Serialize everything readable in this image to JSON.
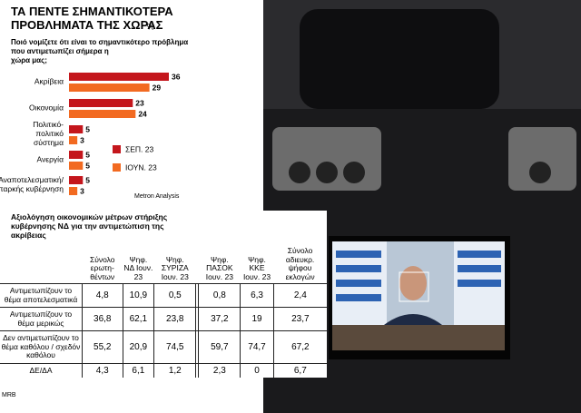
{
  "chart_data": {
    "type": "bar",
    "orientation": "horizontal",
    "title": "ΤΑ ΠΕΝΤΕ ΣΗΜΑΝΤΙΚΟΤΕΡΑ ΠΡΟΒΛΗΜΑΤΑ ΤΗΣ ΧΩΡΑΣ",
    "unit": "%",
    "subtitle": "Ποιό νομίζετε ότι είναι το σημαντικότερο πρόβλημα που αντιμετωπίζει σήμερα η χώρα μας;",
    "categories": [
      "Ακρίβεια",
      "Οικονομία",
      "Πολιτικό-πολιτικό σύστημα",
      "Ανεργία",
      "Αναποτελεσματική/ Ανεπαρκής κυβέρνηση"
    ],
    "series": [
      {
        "name": "ΣΕΠ. 23",
        "color": "#c4161c",
        "values": [
          36,
          23,
          5,
          5,
          5
        ]
      },
      {
        "name": "ΙΟΥΝ. 23",
        "color": "#f26a21",
        "values": [
          29,
          24,
          3,
          5,
          3
        ]
      }
    ],
    "source": "Metron Analysis"
  },
  "table": {
    "title": "Αξιολόγηση οικονομικών μέτρων στήριξης κυβέρνησης ΝΔ για την αντιμετώπιση της ακρίβειας",
    "columns": [
      "Σύνολο ερωτη-θέντων",
      "Ψηφ. ΝΔ Ιουν. 23",
      "Ψηφ. ΣΥΡΙΖΑ Ιουν. 23",
      "Ψηφ. ΠΑΣΟΚ Ιουν. 23",
      "Ψηφ. ΚΚΕ Ιουν. 23",
      "Σύνολο αδιευκρ. ψήφου εκλογών"
    ],
    "rows": [
      {
        "label": "Αντιμετωπίζουν το θέμα αποτελεσματικά",
        "values": [
          "4,8",
          "10,9",
          "0,5",
          "0,8",
          "6,3",
          "2,4"
        ]
      },
      {
        "label": "Αντιμετωπίζουν το θέμα μερικώς",
        "values": [
          "36,8",
          "62,1",
          "23,8",
          "37,2",
          "19",
          "23,7"
        ]
      },
      {
        "label": "Δεν αντιμετωπίζουν το θέμα καθόλου / σχεδόν καθόλου",
        "values": [
          "55,2",
          "20,9",
          "74,5",
          "59,7",
          "74,7",
          "67,2"
        ]
      },
      {
        "label": "ΔΕ/ΔΑ",
        "values": [
          "4,3",
          "6,1",
          "1,2",
          "2,3",
          "0",
          "6,7"
        ]
      }
    ],
    "source": "MRB"
  }
}
